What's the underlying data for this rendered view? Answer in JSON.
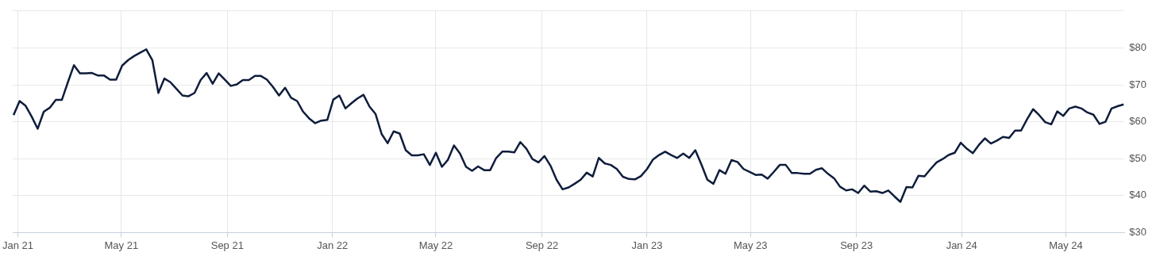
{
  "chart_data": {
    "type": "line",
    "color": "#0f1d3c",
    "marker": "none",
    "grid": true,
    "xlim": [
      "2020-12-26",
      "2024-07-08"
    ],
    "xticks": [
      {
        "value": "2021-01-01",
        "label": "Jan 21"
      },
      {
        "value": "2021-05-01",
        "label": "May 21"
      },
      {
        "value": "2021-09-01",
        "label": "Sep 21"
      },
      {
        "value": "2022-01-01",
        "label": "Jan 22"
      },
      {
        "value": "2022-05-01",
        "label": "May 22"
      },
      {
        "value": "2022-09-01",
        "label": "Sep 22"
      },
      {
        "value": "2023-01-01",
        "label": "Jan 23"
      },
      {
        "value": "2023-05-01",
        "label": "May 23"
      },
      {
        "value": "2023-09-01",
        "label": "Sep 23"
      },
      {
        "value": "2024-01-01",
        "label": "Jan 24"
      },
      {
        "value": "2024-05-01",
        "label": "May 24"
      }
    ],
    "ylim": [
      30,
      90
    ],
    "yticks": [
      {
        "value": 30,
        "label": "$30"
      },
      {
        "value": 40,
        "label": "$40"
      },
      {
        "value": 50,
        "label": "$50"
      },
      {
        "value": 60,
        "label": "$60"
      },
      {
        "value": 70,
        "label": "$70"
      },
      {
        "value": 80,
        "label": "$80"
      },
      {
        "value": 90,
        "label": null
      }
    ],
    "x": [
      "2020-12-27",
      "2021-01-03",
      "2021-01-10",
      "2021-01-17",
      "2021-01-24",
      "2021-01-31",
      "2021-02-07",
      "2021-02-14",
      "2021-02-21",
      "2021-02-28",
      "2021-03-07",
      "2021-03-14",
      "2021-03-21",
      "2021-03-28",
      "2021-04-04",
      "2021-04-11",
      "2021-04-18",
      "2021-04-25",
      "2021-05-02",
      "2021-05-09",
      "2021-05-16",
      "2021-05-23",
      "2021-05-30",
      "2021-06-06",
      "2021-06-13",
      "2021-06-20",
      "2021-06-27",
      "2021-07-04",
      "2021-07-11",
      "2021-07-18",
      "2021-07-25",
      "2021-08-01",
      "2021-08-08",
      "2021-08-15",
      "2021-08-22",
      "2021-08-29",
      "2021-09-05",
      "2021-09-12",
      "2021-09-19",
      "2021-09-26",
      "2021-10-03",
      "2021-10-10",
      "2021-10-17",
      "2021-10-24",
      "2021-10-31",
      "2021-11-07",
      "2021-11-14",
      "2021-11-21",
      "2021-11-28",
      "2021-12-05",
      "2021-12-12",
      "2021-12-19",
      "2021-12-26",
      "2022-01-02",
      "2022-01-09",
      "2022-01-16",
      "2022-01-23",
      "2022-01-30",
      "2022-02-06",
      "2022-02-13",
      "2022-02-20",
      "2022-02-27",
      "2022-03-06",
      "2022-03-13",
      "2022-03-20",
      "2022-03-27",
      "2022-04-03",
      "2022-04-10",
      "2022-04-17",
      "2022-04-24",
      "2022-05-01",
      "2022-05-08",
      "2022-05-15",
      "2022-05-22",
      "2022-05-29",
      "2022-06-05",
      "2022-06-12",
      "2022-06-19",
      "2022-06-26",
      "2022-07-03",
      "2022-07-10",
      "2022-07-17",
      "2022-07-24",
      "2022-07-31",
      "2022-08-07",
      "2022-08-14",
      "2022-08-21",
      "2022-08-28",
      "2022-09-04",
      "2022-09-11",
      "2022-09-18",
      "2022-09-25",
      "2022-10-02",
      "2022-10-09",
      "2022-10-16",
      "2022-10-23",
      "2022-10-30",
      "2022-11-06",
      "2022-11-13",
      "2022-11-20",
      "2022-11-27",
      "2022-12-04",
      "2022-12-11",
      "2022-12-18",
      "2022-12-25",
      "2023-01-01",
      "2023-01-08",
      "2023-01-15",
      "2023-01-22",
      "2023-01-29",
      "2023-02-05",
      "2023-02-12",
      "2023-02-19",
      "2023-02-26",
      "2023-03-05",
      "2023-03-12",
      "2023-03-19",
      "2023-03-26",
      "2023-04-02",
      "2023-04-09",
      "2023-04-16",
      "2023-04-23",
      "2023-04-30",
      "2023-05-07",
      "2023-05-14",
      "2023-05-21",
      "2023-05-28",
      "2023-06-04",
      "2023-06-11",
      "2023-06-18",
      "2023-06-25",
      "2023-07-02",
      "2023-07-09",
      "2023-07-16",
      "2023-07-23",
      "2023-07-30",
      "2023-08-06",
      "2023-08-13",
      "2023-08-20",
      "2023-08-27",
      "2023-09-03",
      "2023-09-10",
      "2023-09-17",
      "2023-09-24",
      "2023-10-01",
      "2023-10-08",
      "2023-10-15",
      "2023-10-22",
      "2023-10-29",
      "2023-11-05",
      "2023-11-12",
      "2023-11-19",
      "2023-11-26",
      "2023-12-03",
      "2023-12-10",
      "2023-12-17",
      "2023-12-24",
      "2023-12-31",
      "2024-01-07",
      "2024-01-14",
      "2024-01-21",
      "2024-01-28",
      "2024-02-04",
      "2024-02-11",
      "2024-02-18",
      "2024-02-25",
      "2024-03-03",
      "2024-03-10",
      "2024-03-17",
      "2024-03-24",
      "2024-03-31",
      "2024-04-07",
      "2024-04-14",
      "2024-04-21",
      "2024-04-28",
      "2024-05-05",
      "2024-05-12",
      "2024-05-19",
      "2024-05-26",
      "2024-06-02",
      "2024-06-09",
      "2024-06-16",
      "2024-06-23",
      "2024-06-30",
      "2024-07-07"
    ],
    "values": [
      61.8,
      65.6,
      64.3,
      61.4,
      58.1,
      62.7,
      63.8,
      65.9,
      65.9,
      70.7,
      75.3,
      73.1,
      73.1,
      73.2,
      72.5,
      72.5,
      71.4,
      71.4,
      75.2,
      76.7,
      77.8,
      78.7,
      79.6,
      76.7,
      67.8,
      71.7,
      70.7,
      68.9,
      67.1,
      66.9,
      67.8,
      71.3,
      73.2,
      70.3,
      73.1,
      71.4,
      69.7,
      70.1,
      71.3,
      71.3,
      72.4,
      72.4,
      71.4,
      69.4,
      67.1,
      69.2,
      66.5,
      65.6,
      62.7,
      60.9,
      59.6,
      60.3,
      60.5,
      66.0,
      67.1,
      63.6,
      65.0,
      66.3,
      67.3,
      64.1,
      62.1,
      56.7,
      54.2,
      57.4,
      56.8,
      52.3,
      50.9,
      50.9,
      51.2,
      48.3,
      51.6,
      47.8,
      49.7,
      53.6,
      51.4,
      47.8,
      46.7,
      47.9,
      46.9,
      46.9,
      50.2,
      51.9,
      51.9,
      51.7,
      54.5,
      52.7,
      49.9,
      49.0,
      50.7,
      48.1,
      44.3,
      41.7,
      42.2,
      43.2,
      44.3,
      46.2,
      45.2,
      50.2,
      48.7,
      48.3,
      47.2,
      45.1,
      44.5,
      44.4,
      45.3,
      47.2,
      49.8,
      51.0,
      51.9,
      51.0,
      50.2,
      51.4,
      50.2,
      52.3,
      48.5,
      44.3,
      43.2,
      46.9,
      45.9,
      49.6,
      49.1,
      47.2,
      46.4,
      45.6,
      45.7,
      44.6,
      46.4,
      48.3,
      48.3,
      46.1,
      46.1,
      45.9,
      45.9,
      47.0,
      47.4,
      45.9,
      44.7,
      42.4,
      41.4,
      41.7,
      40.7,
      42.7,
      41.1,
      41.2,
      40.7,
      41.4,
      39.8,
      38.3,
      42.3,
      42.2,
      45.4,
      45.2,
      47.2,
      49.0,
      49.9,
      51.0,
      51.6,
      54.3,
      52.7,
      51.5,
      53.7,
      55.5,
      54.1,
      54.9,
      55.9,
      55.6,
      57.6,
      57.6,
      60.7,
      63.4,
      61.8,
      59.9,
      59.3,
      62.8,
      61.6,
      63.6,
      64.1,
      63.6,
      62.5,
      61.9,
      59.4,
      60.0,
      63.6,
      64.2,
      64.7
    ]
  }
}
